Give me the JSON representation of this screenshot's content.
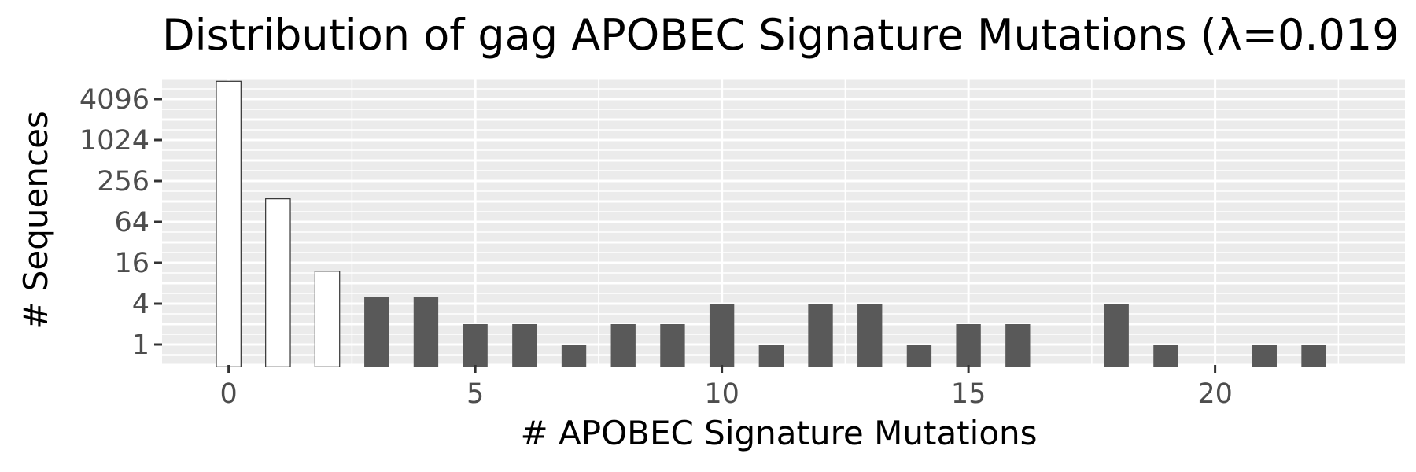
{
  "chart_data": {
    "type": "bar",
    "title": "Distribution of gag APOBEC Signature Mutations (λ=0.019",
    "xlabel": "# APOBEC Signature Mutations",
    "ylabel": "# Sequences",
    "y_scale": "log2",
    "grid": true,
    "x_ticks": [
      0,
      5,
      10,
      15,
      20
    ],
    "y_ticks": [
      {
        "value": 1,
        "label": "1"
      },
      {
        "value": 4,
        "label": "4"
      },
      {
        "value": 16,
        "label": "16"
      },
      {
        "value": 64,
        "label": "64"
      },
      {
        "value": 256,
        "label": "256"
      },
      {
        "value": 1024,
        "label": "1024"
      },
      {
        "value": 4096,
        "label": "4096"
      }
    ],
    "xlim": [
      -1.35,
      23.85
    ],
    "ylim_log2": [
      -1.0,
      13.0
    ],
    "series": [
      {
        "style": "white-filled-outlined",
        "fill": "#ffffff",
        "stroke": "#333333",
        "points": [
          {
            "x": 0,
            "y": 7500
          },
          {
            "x": 1,
            "y": 140
          },
          {
            "x": 2,
            "y": 12
          }
        ]
      },
      {
        "style": "dark-filled",
        "fill": "#595959",
        "points": [
          {
            "x": 3,
            "y": 5
          },
          {
            "x": 4,
            "y": 5
          },
          {
            "x": 5,
            "y": 2
          },
          {
            "x": 6,
            "y": 2
          },
          {
            "x": 7,
            "y": 1
          },
          {
            "x": 8,
            "y": 2
          },
          {
            "x": 9,
            "y": 2
          },
          {
            "x": 10,
            "y": 4
          },
          {
            "x": 11,
            "y": 1
          },
          {
            "x": 12,
            "y": 4
          },
          {
            "x": 13,
            "y": 4
          },
          {
            "x": 14,
            "y": 1
          },
          {
            "x": 15,
            "y": 2
          },
          {
            "x": 16,
            "y": 2
          },
          {
            "x": 18,
            "y": 4
          },
          {
            "x": 19,
            "y": 1
          },
          {
            "x": 21,
            "y": 1
          },
          {
            "x": 22,
            "y": 1
          }
        ]
      }
    ]
  },
  "colors": {
    "panel_background": "#ebebeb",
    "grid": "#ffffff",
    "axis_text": "#4d4d4d",
    "tick_mark": "#333333"
  }
}
